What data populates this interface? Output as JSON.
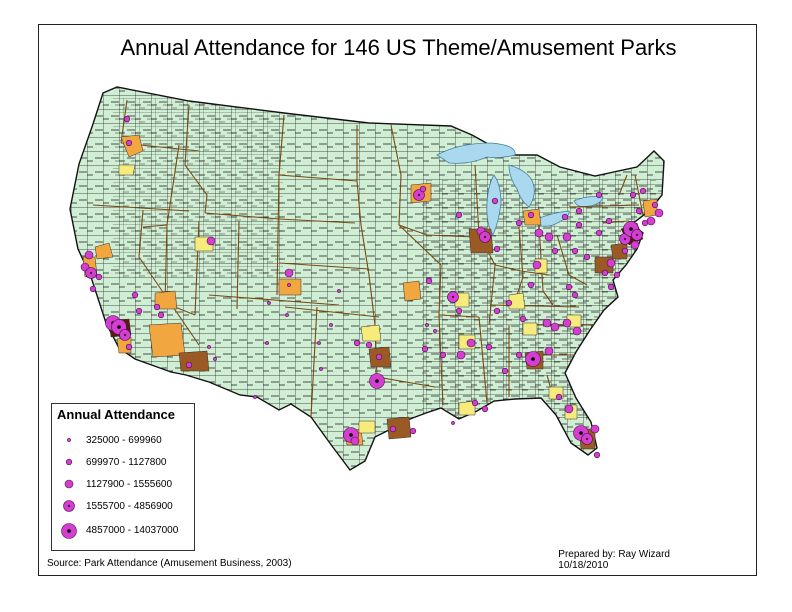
{
  "title": "Annual Attendance for 146 US Theme/Amusement Parks",
  "legend": {
    "title": "Annual Attendance",
    "classes": [
      {
        "label": "325000 - 699960",
        "level": 1
      },
      {
        "label": "699970 - 1127800",
        "level": 2
      },
      {
        "label": "1127900 - 1555600",
        "level": 3
      },
      {
        "label": "1555700 - 4856900",
        "level": 4
      },
      {
        "label": "4857000 - 14037000",
        "level": 5
      }
    ]
  },
  "source": "Source: Park Attendance (Amusement Business, 2003)",
  "prepared_by": "Prepared by: Ray Wizard",
  "date": "10/18/2010",
  "colors": {
    "land": "#cfeed3",
    "water": "#a9d8ef",
    "county_border": "#222222",
    "state_border": "#7a4a12",
    "symbol_fill": "#d43fd1",
    "symbol_outline": "#4a0f4a",
    "county_light": "#f7ec7b",
    "county_medium": "#f1a640",
    "county_dark": "#9b5a24",
    "county_darkest": "#5b1a12"
  },
  "map_layer_icons": [
    "county-polygon",
    "state-boundary",
    "attendance-symbol"
  ]
}
